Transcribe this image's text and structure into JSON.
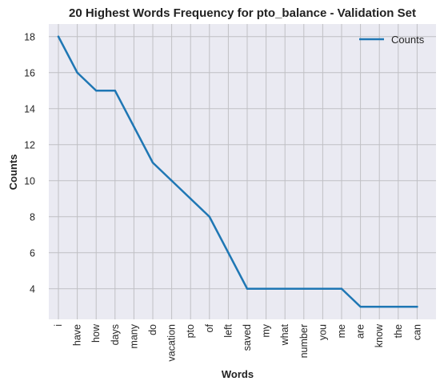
{
  "chart_data": {
    "type": "line",
    "title": "20 Highest Words Frequency for pto_balance - Validation Set",
    "xlabel": "Words",
    "ylabel": "Counts",
    "categories": [
      "i",
      "have",
      "how",
      "days",
      "many",
      "do",
      "vacation",
      "pto",
      "of",
      "left",
      "saved",
      "my",
      "what",
      "number",
      "you",
      "me",
      "are",
      "know",
      "the",
      "can"
    ],
    "series": [
      {
        "name": "Counts",
        "values": [
          18,
          16,
          15,
          15,
          13,
          11,
          10,
          9,
          8,
          6,
          4,
          4,
          4,
          4,
          4,
          4,
          3,
          3,
          3,
          3
        ]
      }
    ],
    "ylim": [
      2.3,
      18.7
    ],
    "yticks": [
      4,
      6,
      8,
      10,
      12,
      14,
      16,
      18
    ],
    "grid": true,
    "legend_position": "top-right",
    "colors": {
      "line": "#1f77b4",
      "background": "#eaeaf2",
      "grid": "#c0c0c4"
    }
  }
}
